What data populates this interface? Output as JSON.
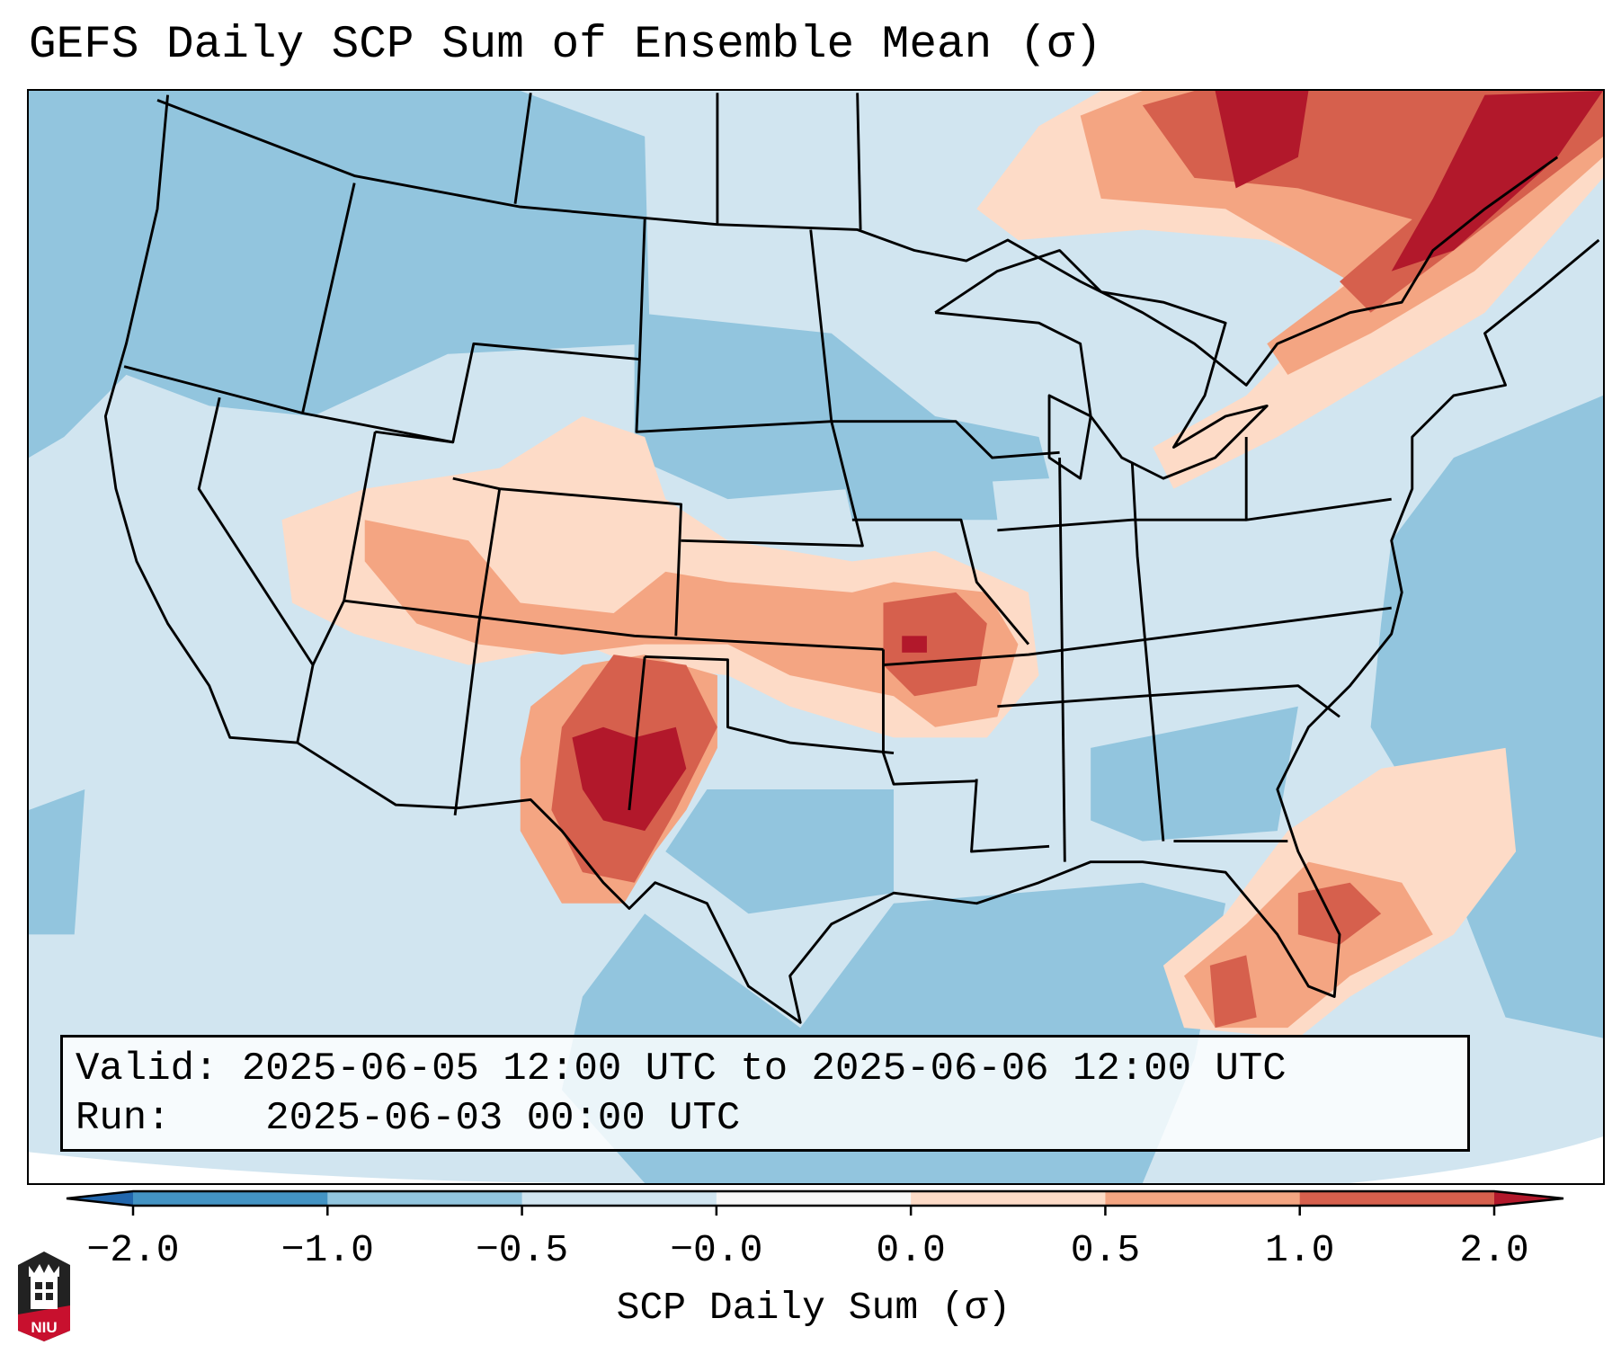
{
  "title": "GEFS Daily SCP Sum of Ensemble Mean (σ)",
  "info": {
    "valid_label": "Valid:",
    "valid_value": "2025-06-05 12:00 UTC to 2025-06-06 12:00 UTC",
    "run_label": "Run:",
    "run_value": "2025-06-03 00:00 UTC"
  },
  "logo_text": "NIU",
  "chart_data": {
    "type": "heatmap",
    "title": "GEFS Daily SCP Sum of Ensemble Mean (σ)",
    "colorbar": {
      "label": "SCP Daily Sum (σ)",
      "tick_labels": [
        "−2.0",
        "−1.0",
        "−0.5",
        "−0.0",
        "0.0",
        "0.5",
        "1.0",
        "2.0"
      ],
      "bins": [
        {
          "range": "< -2.0",
          "color": "#2166ac"
        },
        {
          "range": "-2.0 to -1.0",
          "color": "#4393c3"
        },
        {
          "range": "-1.0 to -0.5",
          "color": "#92c5de"
        },
        {
          "range": "-0.5 to -0.0",
          "color": "#d1e5f0"
        },
        {
          "range": "-0.0 to 0.0",
          "color": "#f7f7f7"
        },
        {
          "range": "0.0 to 0.5",
          "color": "#fddbc7"
        },
        {
          "range": "0.5 to 1.0",
          "color": "#f4a582"
        },
        {
          "range": "1.0 to 2.0",
          "color": "#d6604d"
        },
        {
          "range": "> 2.0",
          "color": "#b2182b"
        }
      ],
      "extend": "both",
      "placement": "bottom"
    },
    "highlights": [
      {
        "region": "Eastern New Mexico / West Texas",
        "level": "> 2.0"
      },
      {
        "region": "Kansas / Oklahoma / Arkansas",
        "level": "1.0 to 2.0"
      },
      {
        "region": "Colorado / Utah",
        "level": "0.0 to 1.0"
      },
      {
        "region": "Florida / western Atlantic",
        "level": "0.5 to 2.0"
      },
      {
        "region": "Quebec / Northern New England",
        "level": "1.0 to > 2.0"
      }
    ]
  }
}
